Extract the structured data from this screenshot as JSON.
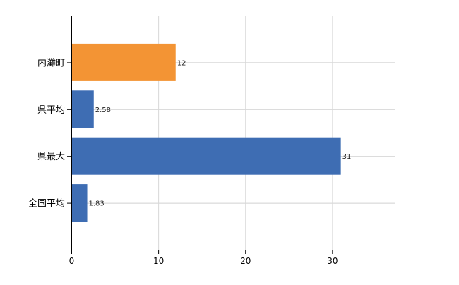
{
  "chart_data": {
    "type": "bar",
    "orientation": "horizontal",
    "categories": [
      "内灘町",
      "県平均",
      "県最大",
      "全国平均"
    ],
    "values": [
      12,
      2.58,
      31,
      1.83
    ],
    "data_labels": [
      "12",
      "2.58",
      "31",
      "1.83"
    ],
    "bar_colors": [
      "#F39434",
      "#3E6DB3",
      "#3E6DB3",
      "#3E6DB3"
    ],
    "xlim": [
      0,
      37.2
    ],
    "x_ticks": [
      0,
      10,
      20,
      30
    ],
    "x_tick_labels": [
      "0",
      "10",
      "20",
      "30"
    ],
    "grid": true,
    "title": "",
    "xlabel": "",
    "ylabel": ""
  }
}
